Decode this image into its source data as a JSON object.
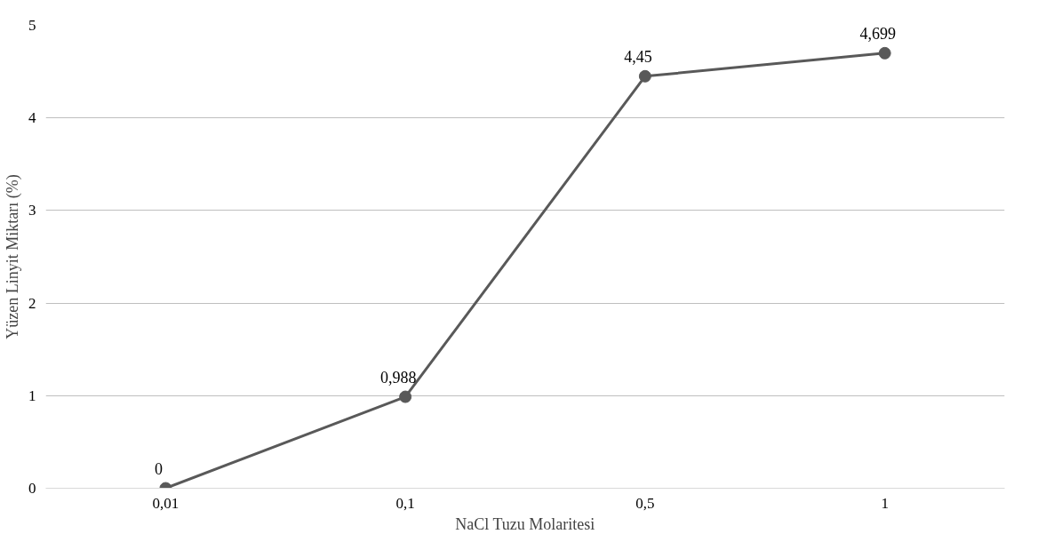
{
  "chart_data": {
    "type": "line",
    "xlabel": "NaCl Tuzu Molaritesi",
    "ylabel": "Yüzen Linyit Miktarı (%)",
    "categories": [
      "0,01",
      "0,1",
      "0,5",
      "1"
    ],
    "series": [
      {
        "color": "#595959",
        "values": [
          0,
          0.988,
          4.45,
          4.699
        ],
        "value_labels": [
          "0",
          "0,988",
          "4,45",
          "4,699"
        ]
      }
    ],
    "ylim": [
      0,
      5
    ],
    "yticks": [
      0,
      1,
      2,
      3,
      4,
      5
    ],
    "grid": "y",
    "marker": "circle",
    "line_style": "solid"
  }
}
